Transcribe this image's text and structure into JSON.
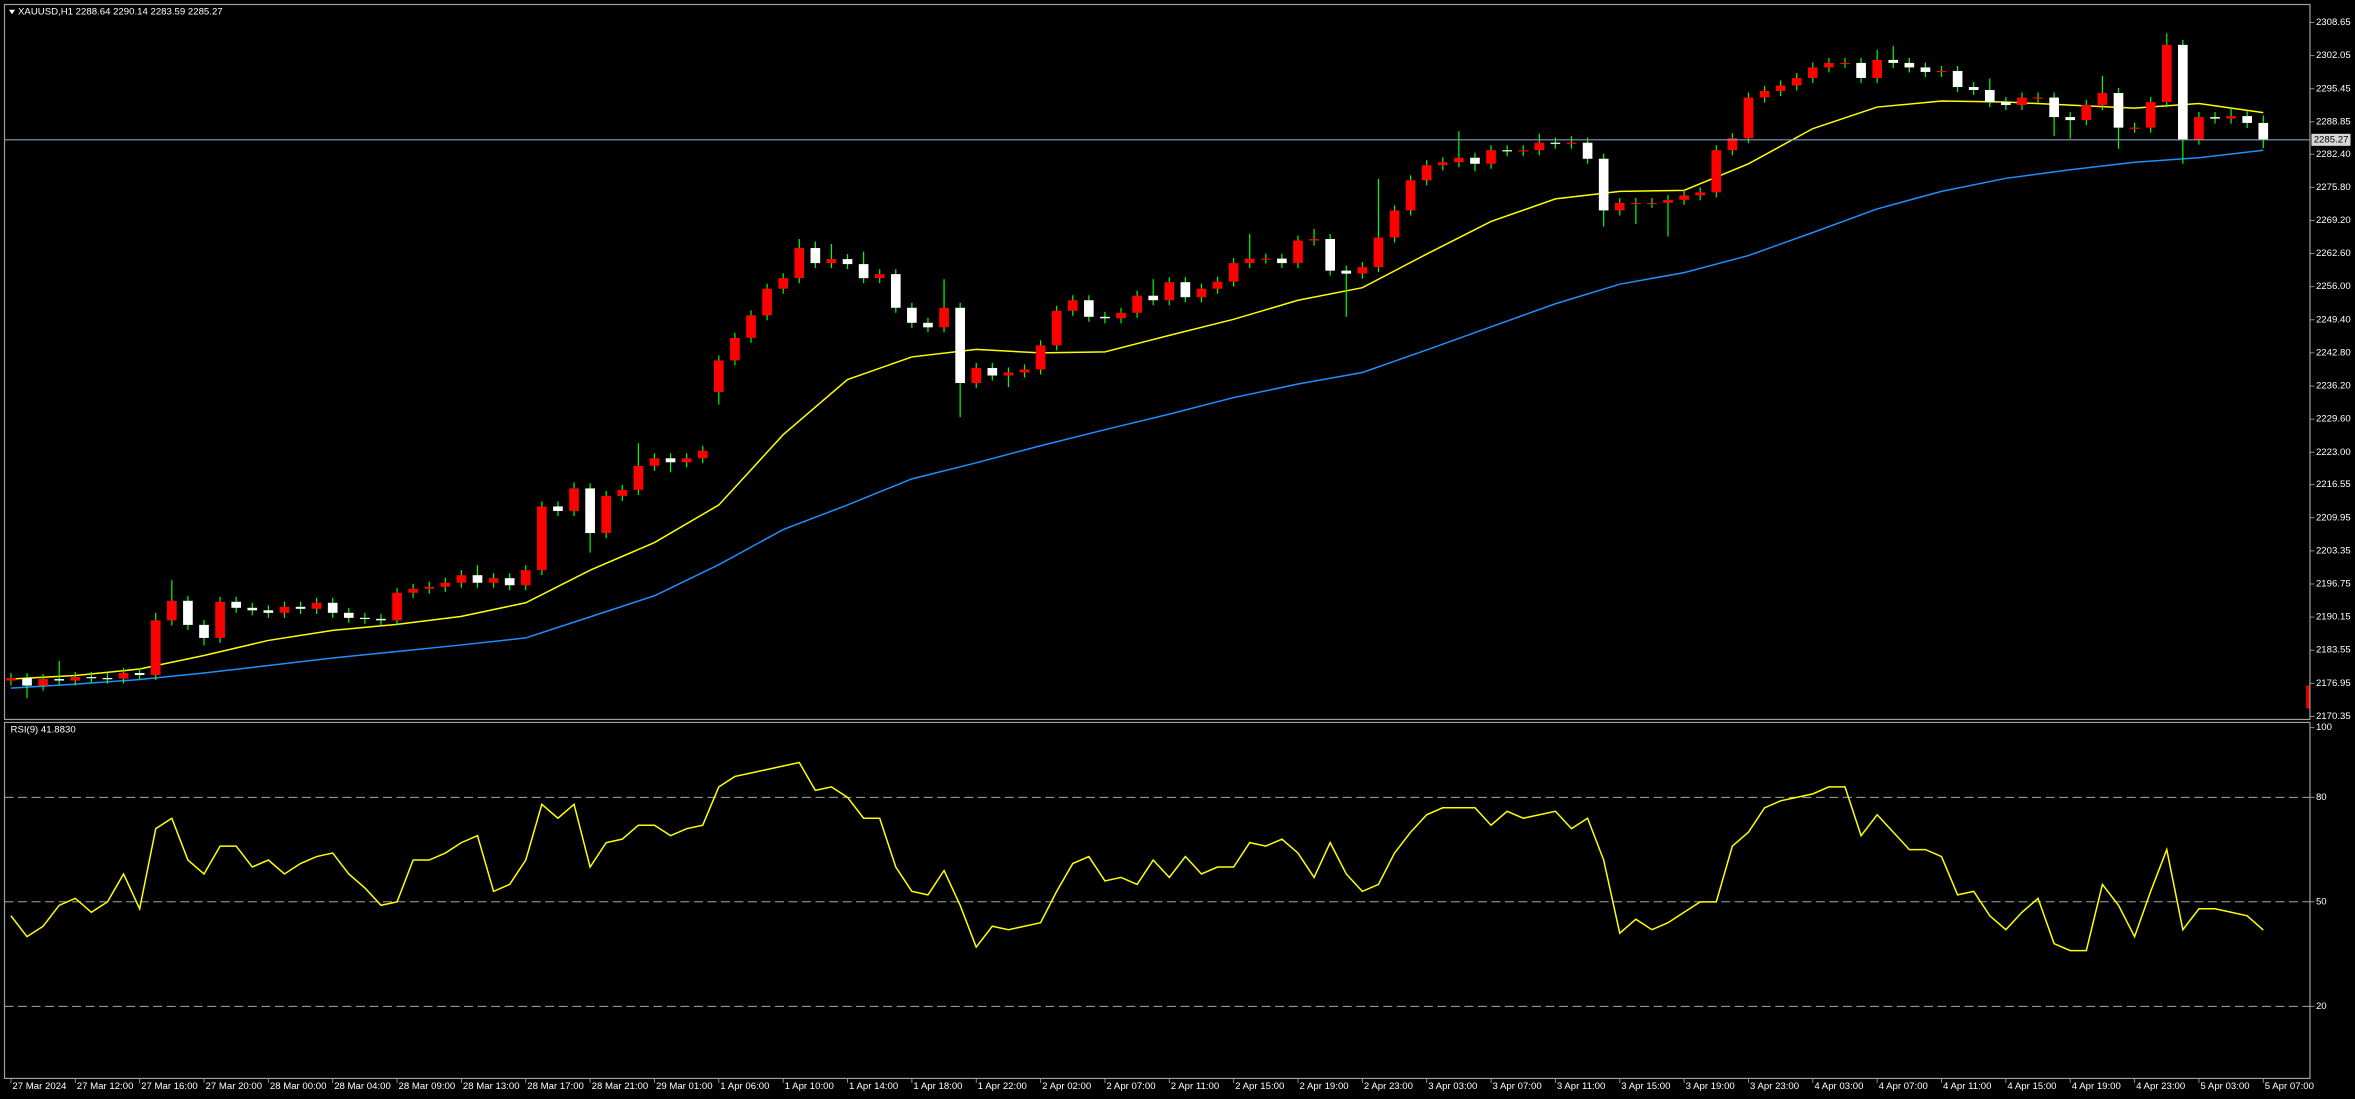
{
  "chart_data": [
    {
      "type": "candlestick",
      "title": "XAUUSD,H1  2288.64 2290.14 2283.59 2285.27",
      "period": "H1",
      "period_color": "#e00000",
      "bull_color": "#ff0000",
      "bear_color": "#ffffff",
      "wick_color": "#00ff00",
      "last_price_line_color": "#7f9fbf",
      "xlim": [
        -0.4,
        142.9
      ],
      "ylim": [
        2169.75,
        2312.24
      ],
      "yticks": [
        2308.65,
        2302.05,
        2295.45,
        2288.85,
        {
          "value": 2282.4,
          "label": "2282.40"
        },
        {
          "value": 2275.8,
          "label": "2275.80"
        },
        {
          "value": 2269.2,
          "label": "2269.20"
        },
        {
          "value": 2262.6,
          "label": "2262.60"
        },
        {
          "value": 2256,
          "label": "2256.00"
        },
        {
          "value": 2249.4,
          "label": "2249.40"
        },
        {
          "value": 2242.8,
          "label": "2242.80"
        },
        {
          "value": 2236.2,
          "label": "2236.20"
        },
        {
          "value": 2229.6,
          "label": "2229.60"
        },
        {
          "value": 2223,
          "label": "2223.00"
        },
        2216.55,
        2209.95,
        2203.35,
        2196.75,
        2190.15,
        2183.55,
        2176.95,
        2170.35
      ],
      "xticks": [
        {
          "value": 0,
          "label": "27 Mar 2024"
        },
        {
          "value": 4,
          "label": "27 Mar 12:00"
        },
        {
          "value": 8,
          "label": "27 Mar 16:00"
        },
        {
          "value": 12,
          "label": "27 Mar 20:00"
        },
        {
          "value": 16,
          "label": "28 Mar 00:00"
        },
        {
          "value": 20,
          "label": "28 Mar 04:00"
        },
        {
          "value": 24,
          "label": "28 Mar 09:00"
        },
        {
          "value": 28,
          "label": "28 Mar 13:00"
        },
        {
          "value": 32,
          "label": "28 Mar 17:00"
        },
        {
          "value": 36,
          "label": "28 Mar 21:00"
        },
        {
          "value": 40,
          "label": "29 Mar 01:00"
        },
        {
          "value": 44,
          "label": "1 Apr 06:00"
        },
        {
          "value": 48,
          "label": "1 Apr 10:00"
        },
        {
          "value": 52,
          "label": "1 Apr 14:00"
        },
        {
          "value": 56,
          "label": "1 Apr 18:00"
        },
        {
          "value": 60,
          "label": "1 Apr 22:00"
        },
        {
          "value": 64,
          "label": "2 Apr 02:00"
        },
        {
          "value": 68,
          "label": "2 Apr 07:00"
        },
        {
          "value": 72,
          "label": "2 Apr 11:00"
        },
        {
          "value": 76,
          "label": "2 Apr 15:00"
        },
        {
          "value": 80,
          "label": "2 Apr 19:00"
        },
        {
          "value": 84,
          "label": "2 Apr 23:00"
        },
        {
          "value": 88,
          "label": "3 Apr 03:00"
        },
        {
          "value": 92,
          "label": "3 Apr 07:00"
        },
        {
          "value": 96,
          "label": "3 Apr 11:00"
        },
        {
          "value": 100,
          "label": "3 Apr 15:00"
        },
        {
          "value": 104,
          "label": "3 Apr 19:00"
        },
        {
          "value": 108,
          "label": "3 Apr 23:00"
        },
        {
          "value": 112,
          "label": "4 Apr 03:00"
        },
        {
          "value": 116,
          "label": "4 Apr 07:00"
        },
        {
          "value": 120,
          "label": "4 Apr 11:00"
        },
        {
          "value": 124,
          "label": "4 Apr 15:00"
        },
        {
          "value": 128,
          "label": "4 Apr 19:00"
        },
        {
          "value": 132,
          "label": "4 Apr 23:00"
        },
        {
          "value": 136,
          "label": "5 Apr 03:00"
        },
        {
          "value": 140,
          "label": "5 Apr 07:00"
        }
      ],
      "open": [
        2177.5,
        2178.0,
        2176.5,
        2177.8,
        2177.5,
        2178.2,
        2178.0,
        2177.9,
        2179.0,
        2178.6,
        2189.5,
        2193.4,
        2188.6,
        2186.0,
        2193.2,
        2192.0,
        2191.5,
        2191.0,
        2192.2,
        2191.8,
        2193.0,
        2191.0,
        2190.0,
        2189.8,
        2189.5,
        2195.0,
        2195.8,
        2196.2,
        2197.0,
        2198.5,
        2197.0,
        2197.9,
        2196.5,
        2199.5,
        2212.2,
        2211.3,
        2215.8,
        2206.9,
        2214.3,
        2215.5,
        2220.3,
        2221.8,
        2221.0,
        2221.8,
        2235.0,
        2241.3,
        2245.8,
        2250.3,
        2255.6,
        2257.7,
        2263.7,
        2260.7,
        2261.5,
        2260.5,
        2257.7,
        2258.5,
        2251.8,
        2248.8,
        2247.9,
        2251.8,
        2236.8,
        2239.8,
        2238.3,
        2238.9,
        2239.5,
        2244.3,
        2251.2,
        2253.3,
        2250.0,
        2249.7,
        2250.8,
        2254.2,
        2253.3,
        2256.9,
        2253.9,
        2255.6,
        2257.0,
        2260.7,
        2261.6,
        2261.6,
        2260.7,
        2265.2,
        2265.5,
        2259.2,
        2258.6,
        2259.9,
        2265.8,
        2271.2,
        2277.2,
        2280.2,
        2280.8,
        2281.7,
        2280.5,
        2283.2,
        2283.0,
        2283.2,
        2284.7,
        2284.5,
        2284.7,
        2281.5,
        2271.2,
        2272.7,
        2272.7,
        2272.7,
        2273.3,
        2274.2,
        2274.8,
        2283.2,
        2285.6,
        2293.7,
        2295.0,
        2296.1,
        2297.6,
        2299.7,
        2300.6,
        2300.6,
        2297.6,
        2301.2,
        2300.6,
        2299.7,
        2298.8,
        2299.0,
        2295.8,
        2295.2,
        2292.8,
        2292.2,
        2293.7,
        2293.7,
        2289.8,
        2289.2,
        2292.2,
        2294.6,
        2287.7,
        2287.7,
        2292.8,
        2304.2,
        2285.3,
        2289.8,
        2289.5,
        2290.0,
        2288.64
      ],
      "high": [
        2179.0,
        2179.0,
        2178.8,
        2181.4,
        2179.2,
        2179.2,
        2179.0,
        2180.0,
        2180.0,
        2191.0,
        2197.5,
        2194.4,
        2189.6,
        2194.2,
        2194.2,
        2193.0,
        2192.5,
        2193.2,
        2193.2,
        2194.0,
        2194.0,
        2192.0,
        2191.0,
        2190.8,
        2196.0,
        2196.8,
        2197.2,
        2198.0,
        2199.5,
        2200.5,
        2198.9,
        2198.9,
        2200.5,
        2213.2,
        2213.2,
        2217.0,
        2216.8,
        2215.3,
        2216.5,
        2224.8,
        2222.8,
        2222.8,
        2222.8,
        2224.3,
        2242.3,
        2246.8,
        2251.3,
        2256.6,
        2258.7,
        2265.5,
        2265.0,
        2264.5,
        2262.5,
        2263.0,
        2259.5,
        2259.5,
        2252.8,
        2249.8,
        2257.5,
        2252.8,
        2240.8,
        2240.8,
        2239.9,
        2240.5,
        2245.3,
        2252.2,
        2254.3,
        2254.3,
        2251.0,
        2251.8,
        2255.2,
        2257.5,
        2257.9,
        2257.9,
        2256.6,
        2258.0,
        2261.7,
        2266.5,
        2262.6,
        2262.6,
        2266.2,
        2267.5,
        2266.5,
        2260.2,
        2260.9,
        2277.5,
        2272.2,
        2278.2,
        2281.2,
        2281.8,
        2287.0,
        2282.7,
        2284.2,
        2284.2,
        2284.2,
        2286.5,
        2285.7,
        2286.0,
        2285.7,
        2282.5,
        2273.7,
        2273.7,
        2273.7,
        2274.3,
        2275.2,
        2275.8,
        2284.2,
        2286.6,
        2294.7,
        2296.0,
        2297.1,
        2298.6,
        2300.7,
        2301.6,
        2301.6,
        2301.6,
        2303.2,
        2304.0,
        2301.6,
        2300.7,
        2300.0,
        2300.0,
        2296.8,
        2297.5,
        2293.8,
        2294.7,
        2294.7,
        2294.7,
        2290.8,
        2293.2,
        2298.0,
        2295.6,
        2288.7,
        2293.8,
        2306.5,
        2305.2,
        2290.8,
        2290.8,
        2291.5,
        2291.0,
        2290.14
      ],
      "low": [
        2176.5,
        2174.0,
        2175.5,
        2176.5,
        2176.5,
        2177.0,
        2176.9,
        2176.9,
        2177.6,
        2177.6,
        2188.5,
        2187.6,
        2184.5,
        2185.0,
        2191.0,
        2190.5,
        2190.0,
        2190.0,
        2190.8,
        2190.8,
        2190.0,
        2189.0,
        2188.8,
        2188.5,
        2188.5,
        2194.0,
        2194.8,
        2195.2,
        2196.0,
        2196.0,
        2196.0,
        2195.5,
        2195.5,
        2198.5,
        2210.3,
        2210.3,
        2203.0,
        2205.9,
        2213.3,
        2214.5,
        2219.3,
        2219.0,
        2220.0,
        2220.8,
        2232.5,
        2240.3,
        2244.8,
        2249.3,
        2254.6,
        2256.7,
        2259.7,
        2259.7,
        2259.5,
        2256.7,
        2256.7,
        2250.8,
        2247.8,
        2246.9,
        2246.9,
        2230.0,
        2235.8,
        2237.3,
        2236.0,
        2237.9,
        2238.5,
        2243.3,
        2250.2,
        2249.0,
        2248.7,
        2248.7,
        2249.8,
        2252.3,
        2252.3,
        2252.9,
        2252.9,
        2254.6,
        2256.0,
        2259.7,
        2260.6,
        2259.7,
        2259.7,
        2264.2,
        2258.2,
        2250.0,
        2257.6,
        2258.9,
        2264.8,
        2270.2,
        2276.2,
        2279.2,
        2279.8,
        2279.0,
        2279.5,
        2282.0,
        2282.0,
        2282.2,
        2283.5,
        2283.5,
        2280.5,
        2268.0,
        2270.2,
        2268.5,
        2271.7,
        2266.0,
        2272.3,
        2273.2,
        2273.8,
        2282.2,
        2284.6,
        2292.7,
        2294.0,
        2295.1,
        2296.6,
        2298.7,
        2299.6,
        2296.6,
        2296.6,
        2299.6,
        2298.7,
        2297.8,
        2297.8,
        2294.8,
        2294.2,
        2291.8,
        2291.2,
        2291.2,
        2292.7,
        2286.0,
        2285.5,
        2288.2,
        2291.2,
        2283.5,
        2286.7,
        2286.7,
        2291.8,
        2280.5,
        2284.3,
        2288.5,
        2288.5,
        2287.6,
        2283.59
      ],
      "close": [
        2178.0,
        2176.5,
        2177.8,
        2177.5,
        2178.2,
        2178.0,
        2177.9,
        2179.0,
        2178.6,
        2189.5,
        2193.4,
        2188.6,
        2186.0,
        2193.2,
        2192.0,
        2191.5,
        2191.0,
        2192.2,
        2191.8,
        2193.0,
        2191.0,
        2190.0,
        2189.8,
        2189.5,
        2195.0,
        2195.8,
        2196.2,
        2197.0,
        2198.5,
        2197.0,
        2197.9,
        2196.5,
        2199.5,
        2212.2,
        2211.3,
        2215.8,
        2206.9,
        2214.3,
        2215.5,
        2220.3,
        2221.8,
        2221.0,
        2221.8,
        2223.3,
        2241.3,
        2245.8,
        2250.3,
        2255.6,
        2257.7,
        2263.7,
        2260.7,
        2261.5,
        2260.5,
        2257.7,
        2258.5,
        2251.8,
        2248.8,
        2247.9,
        2251.8,
        2236.8,
        2239.8,
        2238.3,
        2238.9,
        2239.5,
        2244.3,
        2251.2,
        2253.3,
        2250.0,
        2249.7,
        2250.8,
        2254.2,
        2253.3,
        2256.9,
        2253.9,
        2255.6,
        2257.0,
        2260.7,
        2261.6,
        2261.6,
        2260.7,
        2265.2,
        2265.5,
        2259.2,
        2258.6,
        2259.9,
        2265.8,
        2271.2,
        2277.2,
        2280.2,
        2280.8,
        2281.7,
        2280.5,
        2283.2,
        2283.0,
        2283.2,
        2284.7,
        2284.5,
        2284.7,
        2281.5,
        2271.2,
        2272.7,
        2272.7,
        2272.7,
        2273.3,
        2274.2,
        2274.8,
        2283.2,
        2285.6,
        2293.7,
        2295.0,
        2296.1,
        2297.6,
        2299.7,
        2300.6,
        2300.6,
        2297.6,
        2301.2,
        2300.6,
        2299.7,
        2298.8,
        2299.0,
        2295.8,
        2295.2,
        2292.8,
        2292.2,
        2293.7,
        2293.7,
        2289.8,
        2289.2,
        2292.2,
        2294.6,
        2287.7,
        2287.7,
        2292.8,
        2304.2,
        2285.3,
        2289.8,
        2289.5,
        2290.0,
        2288.64,
        2285.27
      ],
      "lines": [
        {
          "color": "#ffff00",
          "x": [
            0,
            4,
            8,
            12,
            16,
            20,
            24,
            28,
            32,
            36,
            40,
            44,
            48,
            52,
            56,
            60,
            64,
            68,
            72,
            76,
            80,
            84,
            88,
            92,
            96,
            100,
            104,
            108,
            112,
            116,
            120,
            124,
            128,
            132,
            136,
            140
          ],
          "values": [
            2177.8,
            2178.5,
            2179.8,
            2182.5,
            2185.5,
            2187.5,
            2188.7,
            2190.3,
            2193.0,
            2199.5,
            2205.0,
            2212.5,
            2226.5,
            2237.5,
            2242.0,
            2243.5,
            2242.8,
            2243.0,
            2246.3,
            2249.5,
            2253.3,
            2255.8,
            2262.5,
            2269.0,
            2273.5,
            2275.0,
            2275.2,
            2280.5,
            2287.5,
            2291.8,
            2293.0,
            2292.8,
            2292.2,
            2291.6,
            2292.5,
            2290.7
          ]
        },
        {
          "color": "#1e90ff",
          "x": [
            0,
            4,
            8,
            12,
            16,
            20,
            24,
            28,
            32,
            36,
            40,
            44,
            48,
            52,
            56,
            60,
            64,
            68,
            72,
            76,
            80,
            84,
            88,
            92,
            96,
            100,
            104,
            108,
            112,
            116,
            120,
            124,
            128,
            132,
            136,
            140
          ],
          "values": [
            2176.0,
            2176.8,
            2177.7,
            2179.0,
            2180.5,
            2182.0,
            2183.3,
            2184.6,
            2186.0,
            2190.2,
            2194.4,
            2200.6,
            2207.6,
            2212.5,
            2217.7,
            2220.9,
            2224.3,
            2227.5,
            2230.6,
            2233.9,
            2236.6,
            2238.9,
            2243.4,
            2248.0,
            2252.6,
            2256.5,
            2258.8,
            2262.2,
            2266.8,
            2271.5,
            2275.0,
            2277.6,
            2279.3,
            2280.8,
            2281.7,
            2283.2
          ]
        }
      ]
    },
    {
      "type": "line",
      "title": "RSI(9) 41.8830",
      "color": "#ffff00",
      "level_color": "#bfbfbf",
      "ylim": [
        -0.7,
        101.5
      ],
      "yticks": [
        100,
        80,
        50,
        20
      ],
      "levels": [
        80,
        50,
        20
      ],
      "values": [
        46,
        40,
        43,
        49,
        51,
        47,
        50,
        58,
        48,
        71,
        74,
        62,
        58,
        66,
        66,
        60,
        62,
        58,
        61,
        63,
        64,
        58,
        54,
        49,
        50,
        62,
        62,
        64,
        67,
        69,
        53,
        55,
        62,
        78,
        74,
        78,
        60,
        67,
        68,
        72,
        72,
        69,
        71,
        72,
        83,
        86,
        87,
        88,
        89,
        90,
        82,
        83,
        80,
        74,
        74,
        60,
        53,
        52,
        59,
        49,
        37,
        43,
        42,
        43,
        44,
        53,
        61,
        63,
        56,
        57,
        55,
        62,
        57,
        63,
        58,
        60,
        60,
        67,
        66,
        68,
        64,
        57,
        67,
        58,
        53,
        55,
        64,
        70,
        75,
        77,
        77,
        77,
        72,
        76,
        74,
        75,
        76,
        71,
        74,
        62,
        41,
        45,
        42,
        44,
        47,
        50,
        50,
        66,
        70,
        77,
        79,
        80,
        81,
        83,
        83,
        69,
        75,
        70,
        65,
        65,
        63,
        52,
        53,
        46,
        42,
        47,
        51,
        38,
        36,
        36,
        55,
        49,
        40,
        53,
        65,
        42,
        48,
        48,
        47,
        46,
        41.883
      ]
    }
  ]
}
